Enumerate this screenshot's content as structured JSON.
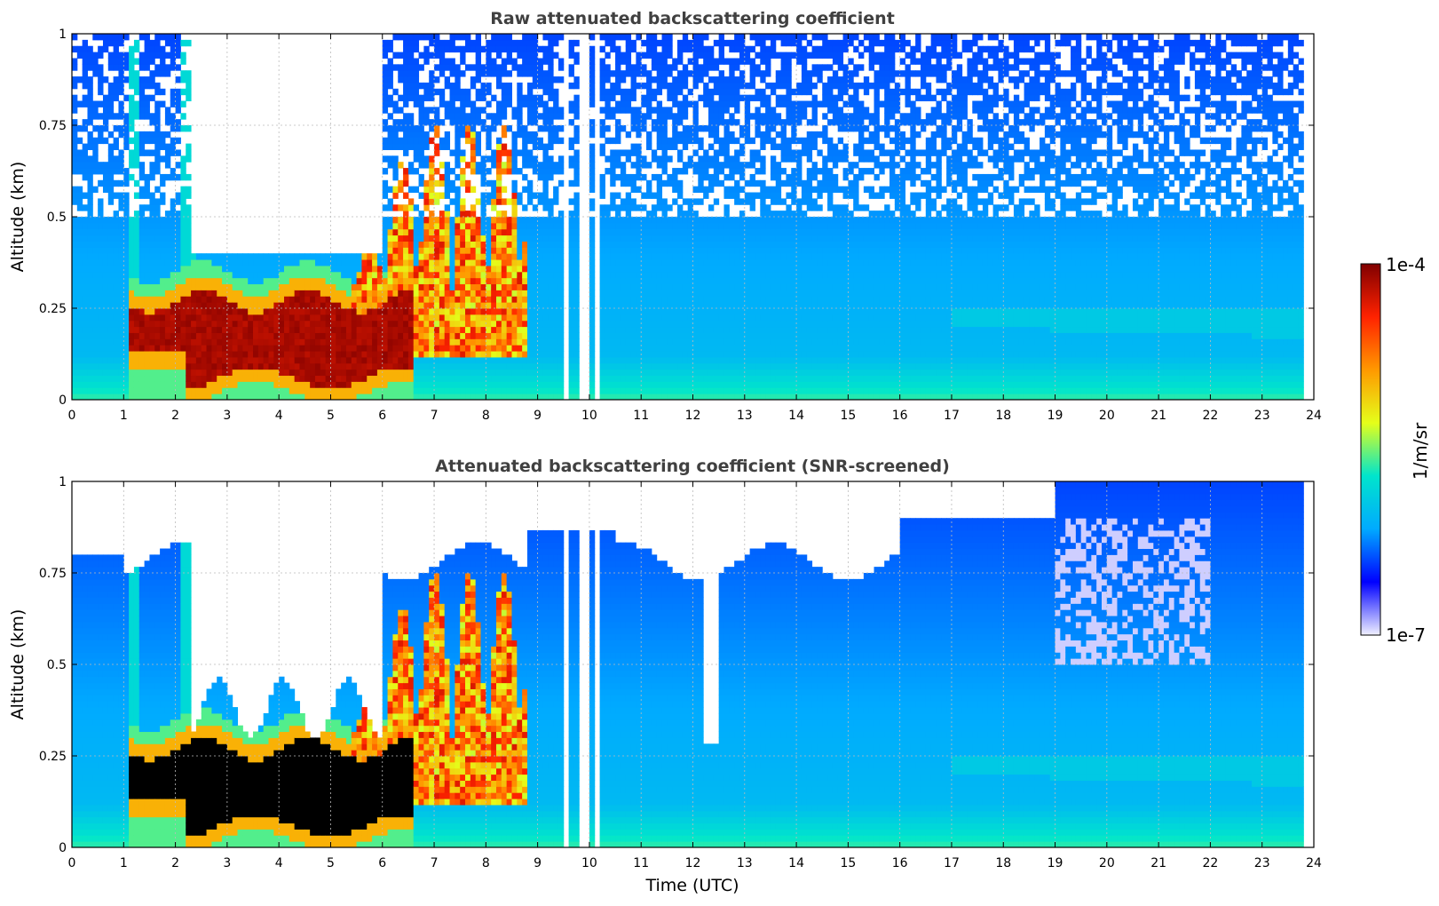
{
  "chart_data": [
    {
      "type": "heatmap",
      "title": "Raw attenuated backscattering coefficient",
      "ylabel": "Altitude (km)",
      "xlabel": "",
      "xlim": [
        0,
        24
      ],
      "ylim": [
        0,
        1
      ],
      "xticks": [
        0,
        1,
        2,
        3,
        4,
        5,
        6,
        7,
        8,
        9,
        10,
        11,
        12,
        13,
        14,
        15,
        16,
        17,
        18,
        19,
        20,
        21,
        22,
        23,
        24
      ],
      "yticks": [
        {
          "value": 0,
          "label": "0"
        },
        {
          "value": 0.25,
          "label": "0.25"
        },
        {
          "value": 0.5,
          "label": "0.5"
        },
        {
          "value": 0.75,
          "label": "0.75"
        },
        {
          "value": 1,
          "label": "1"
        }
      ],
      "grid": true,
      "screened": false,
      "data_gaps_utc": [
        [
          9.48,
          9.58
        ],
        [
          9.78,
          9.98
        ],
        [
          10.08,
          10.16
        ],
        [
          23.8,
          24.0
        ]
      ]
    },
    {
      "type": "heatmap",
      "title": "Attenuated backscattering coefficient (SNR-screened)",
      "ylabel": "Altitude (km)",
      "xlabel": "Time (UTC)",
      "xlim": [
        0,
        24
      ],
      "ylim": [
        0,
        1
      ],
      "xticks": [
        0,
        1,
        2,
        3,
        4,
        5,
        6,
        7,
        8,
        9,
        10,
        11,
        12,
        13,
        14,
        15,
        16,
        17,
        18,
        19,
        20,
        21,
        22,
        23,
        24
      ],
      "yticks": [
        {
          "value": 0,
          "label": "0"
        },
        {
          "value": 0.25,
          "label": "0.25"
        },
        {
          "value": 0.5,
          "label": "0.5"
        },
        {
          "value": 0.75,
          "label": "0.75"
        },
        {
          "value": 1,
          "label": "1"
        }
      ],
      "grid": true,
      "screened": true,
      "data_gaps_utc": [
        [
          9.48,
          9.58
        ],
        [
          9.78,
          9.98
        ],
        [
          10.08,
          10.16
        ],
        [
          23.8,
          24.0
        ]
      ]
    }
  ],
  "colorbar": {
    "label": "1/m/sr",
    "max_label": "1e-4",
    "min_label": "1e-7",
    "max_value": 0.0001,
    "min_value": 1e-07,
    "scale": "log",
    "colormap": "jet",
    "colors": [
      "#f0f0ff",
      "#0000ff",
      "#00aaff",
      "#00e5cc",
      "#e5ff1a",
      "#ff9900",
      "#ff2200",
      "#800000"
    ]
  }
}
